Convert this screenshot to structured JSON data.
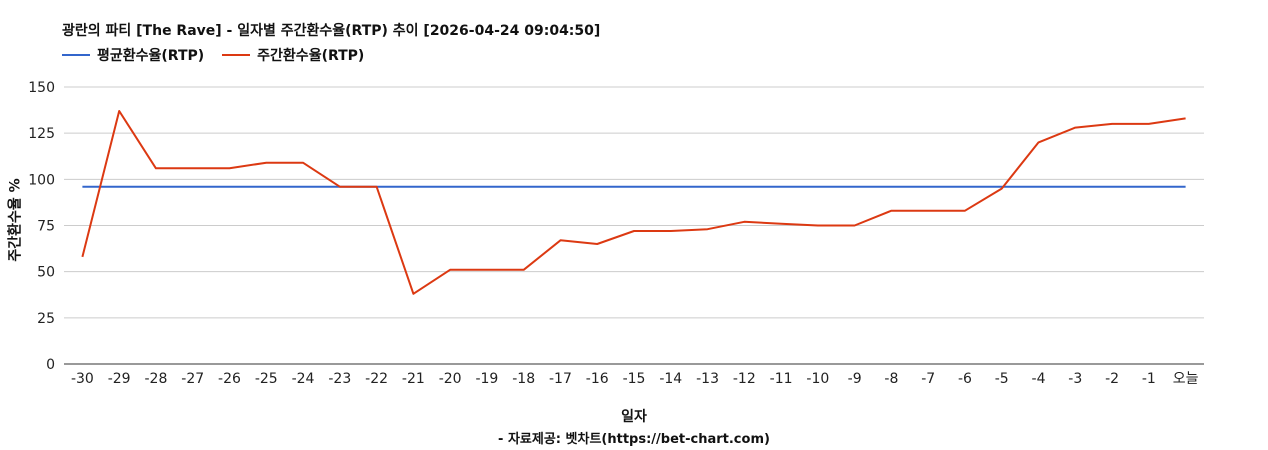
{
  "chart_data": {
    "type": "line",
    "title": "광란의 파티 [The Rave] - 일자별 주간환수율(RTP) 추이 [2026-04-24 09:04:50]",
    "xlabel": "일자",
    "ylabel": "주간환수율 %",
    "source": "- 자료제공: 벳차트(https://bet-chart.com)",
    "categories": [
      "-30",
      "-29",
      "-28",
      "-27",
      "-26",
      "-25",
      "-24",
      "-23",
      "-22",
      "-21",
      "-20",
      "-19",
      "-18",
      "-17",
      "-16",
      "-15",
      "-14",
      "-13",
      "-12",
      "-11",
      "-10",
      "-9",
      "-8",
      "-7",
      "-6",
      "-5",
      "-4",
      "-3",
      "-2",
      "-1",
      "오늘"
    ],
    "series": [
      {
        "name": "평균환수율(RTP)",
        "color": "#3366cc",
        "values": [
          96,
          96,
          96,
          96,
          96,
          96,
          96,
          96,
          96,
          96,
          96,
          96,
          96,
          96,
          96,
          96,
          96,
          96,
          96,
          96,
          96,
          96,
          96,
          96,
          96,
          96,
          96,
          96,
          96,
          96,
          96
        ]
      },
      {
        "name": "주간환수율(RTP)",
        "color": "#dc3912",
        "values": [
          58,
          137,
          106,
          106,
          106,
          109,
          109,
          96,
          96,
          38,
          51,
          51,
          51,
          67,
          65,
          72,
          72,
          73,
          77,
          76,
          75,
          75,
          83,
          83,
          83,
          95,
          120,
          128,
          130,
          130,
          133
        ]
      }
    ],
    "ylim": [
      0,
      150
    ],
    "yticks": [
      0,
      25,
      50,
      75,
      100,
      125,
      150
    ],
    "grid": true,
    "legend_position": "top-left"
  }
}
